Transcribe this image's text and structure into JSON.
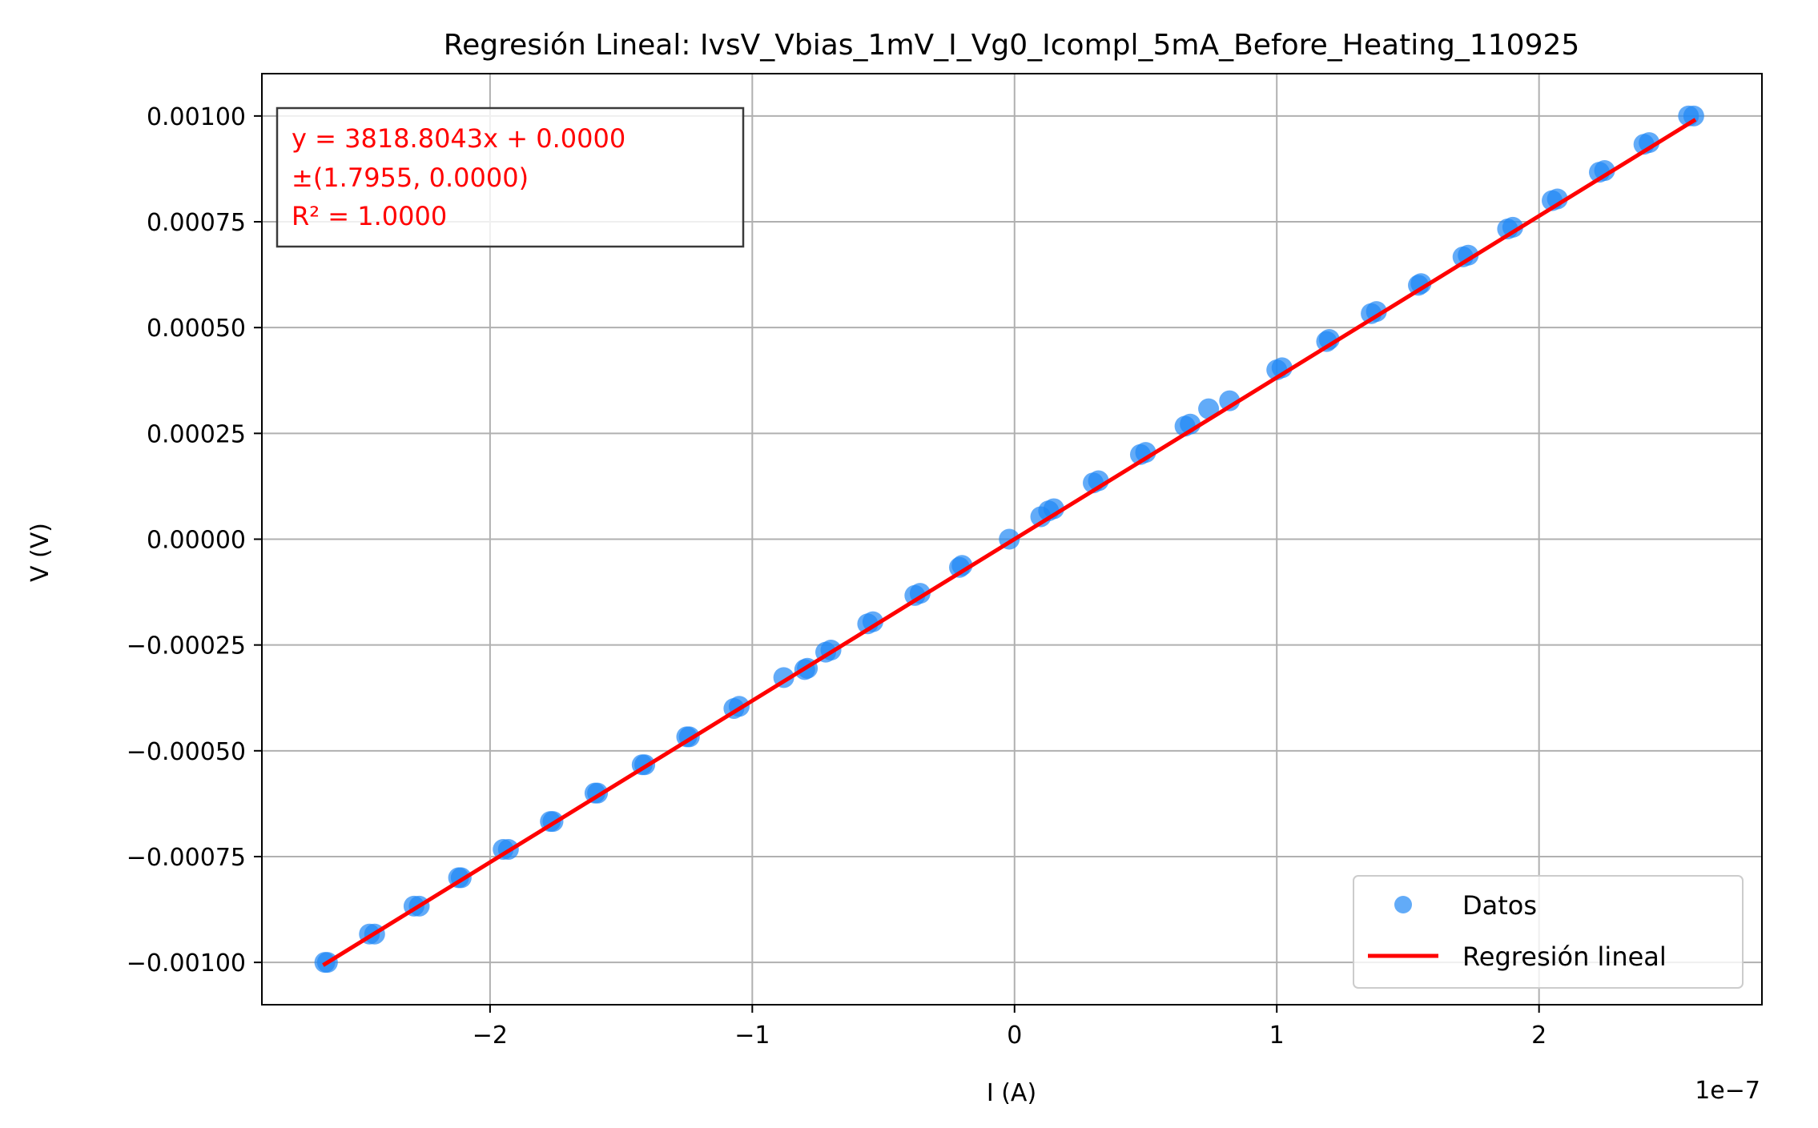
{
  "chart_data": {
    "type": "scatter",
    "title": "Regresión Lineal: IvsV_Vbias_1mV_I_Vg0_Icompl_5mA_Before_Heating_110925",
    "xlabel": "I (A)",
    "ylabel": "V (V)",
    "x_offset_text": "1e−7",
    "xlim": [
      -2.87e-07,
      2.85e-07
    ],
    "ylim": [
      -0.0011,
      0.0011
    ],
    "x_ticks": [
      -2e-07,
      -1e-07,
      0,
      1e-07,
      2e-07
    ],
    "x_tick_labels": [
      "−2",
      "−1",
      "0",
      "1",
      "2"
    ],
    "y_ticks": [
      0.001,
      0.00075,
      0.0005,
      0.00025,
      0,
      -0.00025,
      -0.0005,
      -0.00075,
      -0.001
    ],
    "y_tick_labels": [
      "0.00100",
      "0.00075",
      "0.00050",
      "0.00025",
      "0.00000",
      "−0.00025",
      "−0.00050",
      "−0.00075",
      "−0.00100"
    ],
    "grid": true,
    "legend_position": "lower-right",
    "series": [
      {
        "name": "Datos",
        "kind": "scatter",
        "color": "#1f88f5",
        "points": [
          [
            -2.63e-07,
            -0.001
          ],
          [
            -2.62e-07,
            -0.001
          ],
          [
            -2.46e-07,
            -0.000933
          ],
          [
            -2.44e-07,
            -0.000933
          ],
          [
            -2.29e-07,
            -0.000867
          ],
          [
            -2.27e-07,
            -0.000867
          ],
          [
            -2.12e-07,
            -0.0008
          ],
          [
            -2.11e-07,
            -0.0008
          ],
          [
            -1.95e-07,
            -0.000733
          ],
          [
            -1.93e-07,
            -0.000733
          ],
          [
            -1.77e-07,
            -0.000667
          ],
          [
            -1.76e-07,
            -0.000667
          ],
          [
            -1.6e-07,
            -0.0006
          ],
          [
            -1.59e-07,
            -0.0006
          ],
          [
            -1.42e-07,
            -0.000533
          ],
          [
            -1.41e-07,
            -0.000533
          ],
          [
            -1.25e-07,
            -0.000467
          ],
          [
            -1.24e-07,
            -0.000467
          ],
          [
            -1.07e-07,
            -0.0004
          ],
          [
            -1.05e-07,
            -0.000395
          ],
          [
            -8.8e-08,
            -0.000327
          ],
          [
            -8e-08,
            -0.000308
          ],
          [
            -7.9e-08,
            -0.000305
          ],
          [
            -7.2e-08,
            -0.000267
          ],
          [
            -7e-08,
            -0.000262
          ],
          [
            -5.6e-08,
            -0.0002
          ],
          [
            -5.4e-08,
            -0.000195
          ],
          [
            -3.8e-08,
            -0.000133
          ],
          [
            -3.6e-08,
            -0.000128
          ],
          [
            -2.1e-08,
            -6.67e-05
          ],
          [
            -2e-08,
            -6.2e-05
          ],
          [
            -2e-09,
            0.0
          ],
          [
            1e-08,
            5.3e-05
          ],
          [
            1.3e-08,
            6.7e-05
          ],
          [
            1.5e-08,
            7.2e-05
          ],
          [
            3e-08,
            0.000133
          ],
          [
            3.2e-08,
            0.000138
          ],
          [
            4.8e-08,
            0.0002
          ],
          [
            5e-08,
            0.000205
          ],
          [
            6.5e-08,
            0.000267
          ],
          [
            6.7e-08,
            0.000272
          ],
          [
            7.4e-08,
            0.000308
          ],
          [
            8.2e-08,
            0.000327
          ],
          [
            1e-07,
            0.0004
          ],
          [
            1.02e-07,
            0.000405
          ],
          [
            1.19e-07,
            0.000467
          ],
          [
            1.2e-07,
            0.000472
          ],
          [
            1.36e-07,
            0.000533
          ],
          [
            1.38e-07,
            0.000538
          ],
          [
            1.54e-07,
            0.0006
          ],
          [
            1.55e-07,
            0.000604
          ],
          [
            1.71e-07,
            0.000667
          ],
          [
            1.73e-07,
            0.000671
          ],
          [
            1.88e-07,
            0.000733
          ],
          [
            1.9e-07,
            0.000737
          ],
          [
            2.05e-07,
            0.0008
          ],
          [
            2.07e-07,
            0.000804
          ],
          [
            2.23e-07,
            0.000867
          ],
          [
            2.25e-07,
            0.000871
          ],
          [
            2.4e-07,
            0.000933
          ],
          [
            2.42e-07,
            0.000937
          ],
          [
            2.57e-07,
            0.001
          ],
          [
            2.59e-07,
            0.001
          ]
        ]
      },
      {
        "name": "Regresión lineal",
        "kind": "line",
        "color": "#ff0000",
        "points": [
          [
            -2.63e-07,
            -0.001004
          ],
          [
            2.59e-07,
            0.000989
          ]
        ]
      }
    ],
    "annotation": {
      "lines": [
        "y = 3818.8043x + 0.0000",
        "±(1.7955, 0.0000)",
        "R² = 1.0000"
      ],
      "color": "#ff0000",
      "position": "top-left"
    },
    "legend": [
      "Datos",
      "Regresión lineal"
    ]
  }
}
